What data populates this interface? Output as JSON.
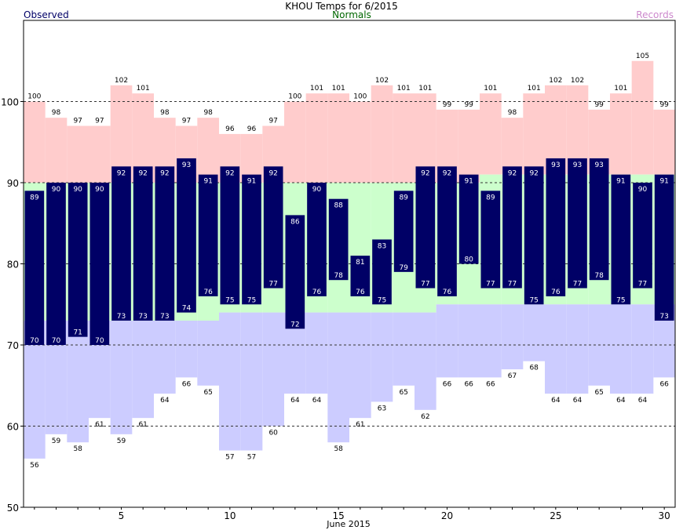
{
  "title": "KHOU Temps for 6/2015",
  "legend": {
    "observed_label": "Observed",
    "normals_label": "Normals",
    "records_label": "Records"
  },
  "colors": {
    "observed": "#000066",
    "normals": "#ccffcc",
    "record_high": "#ffcccc",
    "record_low": "#ccccff",
    "observed_text": "#000066",
    "normals_text": "#006600",
    "records_text": "#cc88cc"
  },
  "chart_data": {
    "type": "bar",
    "title": "KHOU Temps for 6/2015",
    "xlabel": "June 2015",
    "ylabel": "",
    "ylim": [
      50,
      110
    ],
    "xlim": [
      0.5,
      30.5
    ],
    "grid_lines": [
      60,
      70,
      80,
      90,
      100
    ],
    "y_ticks": [
      50,
      60,
      70,
      80,
      90,
      100
    ],
    "x_ticks": [
      5,
      10,
      15,
      20,
      25,
      30
    ],
    "days": [
      1,
      2,
      3,
      4,
      5,
      6,
      7,
      8,
      9,
      10,
      11,
      12,
      13,
      14,
      15,
      16,
      17,
      18,
      19,
      20,
      21,
      22,
      23,
      24,
      25,
      26,
      27,
      28,
      29,
      30
    ],
    "observed_high": [
      89,
      90,
      90,
      90,
      92,
      92,
      92,
      93,
      91,
      92,
      91,
      92,
      86,
      90,
      88,
      81,
      83,
      89,
      92,
      92,
      91,
      89,
      92,
      92,
      93,
      93,
      93,
      91,
      90,
      91
    ],
    "observed_low": [
      70,
      70,
      71,
      70,
      73,
      73,
      73,
      74,
      76,
      75,
      75,
      77,
      72,
      76,
      78,
      76,
      75,
      79,
      77,
      76,
      80,
      77,
      77,
      75,
      76,
      77,
      78,
      75,
      77,
      73
    ],
    "normal_high": [
      90,
      90,
      90,
      90,
      90,
      90,
      90,
      90,
      90,
      90,
      90,
      90,
      90,
      90,
      90,
      90,
      90,
      90,
      90,
      90,
      90,
      91,
      91,
      91,
      91,
      91,
      91,
      91,
      91,
      91
    ],
    "normal_low": [
      73,
      73,
      73,
      73,
      73,
      73,
      73,
      73,
      73,
      74,
      74,
      74,
      74,
      74,
      74,
      74,
      74,
      74,
      74,
      75,
      75,
      75,
      75,
      75,
      75,
      75,
      75,
      75,
      75,
      75
    ],
    "record_high": [
      100,
      98,
      97,
      97,
      102,
      101,
      98,
      97,
      98,
      96,
      96,
      97,
      100,
      101,
      101,
      100,
      102,
      101,
      101,
      99,
      99,
      101,
      98,
      101,
      102,
      102,
      99,
      101,
      105,
      99
    ],
    "record_low": [
      56,
      59,
      58,
      61,
      59,
      61,
      64,
      66,
      65,
      57,
      57,
      60,
      64,
      64,
      58,
      61,
      63,
      65,
      62,
      66,
      66,
      66,
      67,
      68,
      64,
      64,
      65,
      64,
      64,
      66
    ]
  }
}
